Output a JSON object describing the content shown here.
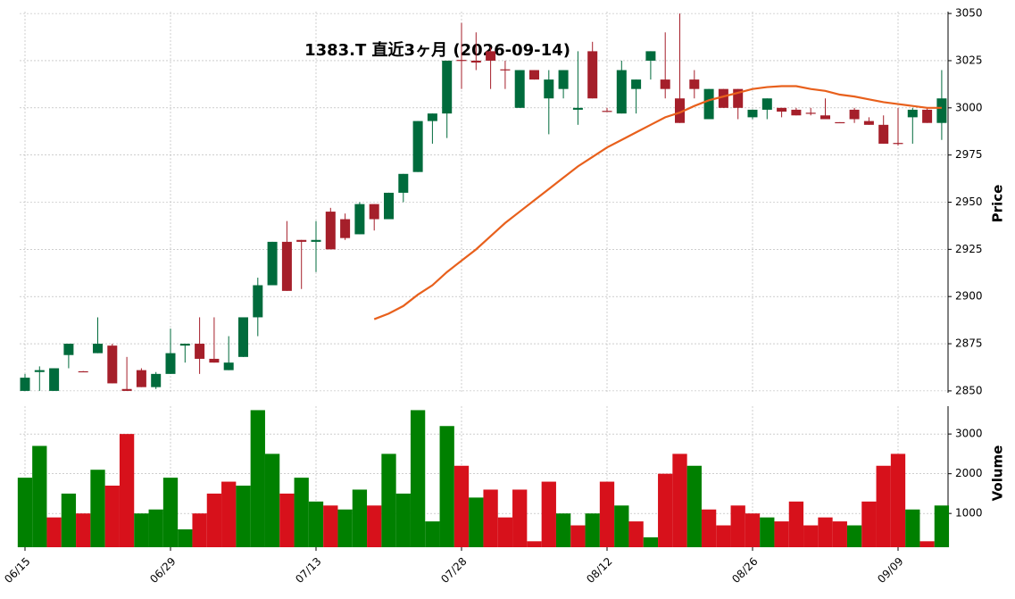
{
  "chart_data": {
    "type": "candlestick",
    "title": "1383.T  直近3ヶ月  (2026-09-14)",
    "categories": [
      "06/15",
      null,
      null,
      null,
      null,
      null,
      null,
      null,
      null,
      null,
      "06/29",
      null,
      null,
      null,
      null,
      null,
      null,
      null,
      null,
      null,
      "07/13",
      null,
      null,
      null,
      null,
      null,
      null,
      null,
      null,
      null,
      "07/28",
      null,
      null,
      null,
      null,
      null,
      null,
      null,
      null,
      null,
      "08/12",
      null,
      null,
      null,
      null,
      null,
      null,
      null,
      null,
      null,
      "08/26",
      null,
      null,
      null,
      null,
      null,
      null,
      null,
      null,
      null,
      "09/09",
      null,
      null,
      null
    ],
    "open": [
      2850,
      2860,
      2850,
      2869,
      2860.4,
      2870,
      2874,
      2851,
      2861,
      2852,
      2859,
      2874,
      2875,
      2867,
      2861,
      2868,
      2889,
      2906,
      2929,
      2930,
      2929,
      2945,
      2941,
      2933,
      2949,
      2941,
      2955,
      2966,
      2993,
      2997,
      3025.4,
      3025,
      3030,
      3020.4,
      3000,
      3020,
      3005,
      3010,
      2999,
      3030,
      2998.4,
      2997,
      3010,
      3025,
      3015,
      3005,
      3015,
      2994,
      3010,
      3010,
      2995,
      2999,
      3000,
      2999,
      2997.4,
      2996,
      2992.4,
      2999,
      2993,
      2991,
      2981.4,
      2995,
      2999,
      2992
    ],
    "high": [
      2859,
      2863,
      2862,
      2875,
      2860.5,
      2889,
      2875,
      2868,
      2862,
      2860,
      2883,
      2875,
      2889,
      2889,
      2879,
      2889,
      2910,
      2929,
      2940,
      2930,
      2940,
      2947,
      2944,
      2950,
      2949,
      2955,
      2965,
      2993,
      2997,
      3025,
      3045,
      3040,
      3032,
      3025,
      3020,
      3020,
      3020,
      3020,
      3030,
      3035,
      3000,
      3025,
      3015,
      3030,
      3040,
      3050,
      3020,
      3010,
      3010,
      3010,
      2999,
      3005,
      3000,
      3000,
      3000,
      3005,
      2992.4,
      3000,
      2995,
      2996,
      3000,
      3000,
      3000,
      3020
    ],
    "low": [
      2850,
      2850,
      2850,
      2862,
      2860,
      2870,
      2854,
      2850,
      2852,
      2851,
      2859,
      2865,
      2859,
      2865,
      2861,
      2868,
      2879,
      2906,
      2903,
      2904,
      2913,
      2925,
      2930,
      2933,
      2935,
      2941,
      2950,
      2966,
      2981,
      2984,
      3010,
      3020,
      3010,
      3010,
      3000,
      3015,
      2986,
      3005,
      2991,
      3005,
      2998,
      2997,
      2997,
      3015,
      3005,
      2992,
      3005,
      2994,
      3000,
      2994,
      2994,
      2994,
      2995,
      2996,
      2996,
      2994,
      2992,
      2992,
      2991,
      2981,
      2980,
      2981,
      2992,
      2983
    ],
    "close": [
      2857,
      2861,
      2862,
      2875,
      2860,
      2875,
      2854,
      2850,
      2852,
      2859,
      2870,
      2875,
      2867,
      2865,
      2865,
      2889,
      2906,
      2929,
      2903,
      2929,
      2930,
      2925,
      2931,
      2949,
      2941,
      2955,
      2965,
      2993,
      2997,
      3025,
      3025,
      3024,
      3025,
      3020,
      3020,
      3015,
      3015,
      3020,
      3000,
      3005,
      2998,
      3020,
      3015,
      3030,
      3010,
      2992,
      3010,
      3010,
      3000,
      3000,
      2999,
      3005,
      2998,
      2996,
      2997,
      2994,
      2992,
      2994,
      2991,
      2981,
      2981,
      2999,
      2992,
      3005
    ],
    "up_color": "#006b3c",
    "down_color": "#a51f2a",
    "ylabel": "Price",
    "ylim": [
      2849,
      3051
    ],
    "yticks": [
      2850,
      2875,
      2900,
      2925,
      2950,
      2975,
      3000,
      3025,
      3050
    ],
    "grid": true,
    "ma": {
      "color": "#e8601c",
      "values": [
        null,
        null,
        null,
        null,
        null,
        null,
        null,
        null,
        null,
        null,
        null,
        null,
        null,
        null,
        null,
        null,
        null,
        null,
        null,
        null,
        null,
        null,
        null,
        null,
        2888,
        2891,
        2895,
        2901,
        2906,
        2913,
        2919,
        2925,
        2932,
        2939,
        2945,
        2951,
        2957,
        2963,
        2969,
        2974,
        2979,
        2983,
        2987,
        2991,
        2995,
        2997.5,
        3001,
        3004,
        3006,
        3008,
        3010,
        3011,
        3011.5,
        3011.5,
        3010,
        3009,
        3007,
        3006,
        3004.5,
        3003,
        3002,
        3001,
        3000,
        3000
      ]
    },
    "volume": {
      "ylabel": "Volume",
      "ylim": [
        150,
        3700
      ],
      "yticks": [
        1000,
        2000,
        3000
      ],
      "values": [
        1900,
        2700,
        900,
        1500,
        1000,
        2100,
        1700,
        3000,
        1000,
        1100,
        1900,
        600,
        1000,
        1500,
        1800,
        1700,
        3600,
        2500,
        1500,
        1900,
        1300,
        1200,
        1100,
        1600,
        1200,
        2500,
        1500,
        3600,
        800,
        3200,
        2200,
        1400,
        1600,
        900,
        1600,
        300,
        1800,
        1000,
        700,
        1000,
        1800,
        1200,
        800,
        400,
        2000,
        2500,
        2200,
        1100,
        700,
        1200,
        1000,
        900,
        800,
        1300,
        700,
        900,
        800,
        700,
        1300,
        2200,
        2500,
        1100,
        300,
        1200
      ],
      "colors": [
        "#008000",
        "#008000",
        "#d7111b",
        "#008000",
        "#d7111b",
        "#008000",
        "#d7111b",
        "#d7111b",
        "#008000",
        "#008000",
        "#008000",
        "#008000",
        "#d7111b",
        "#d7111b",
        "#d7111b",
        "#008000",
        "#008000",
        "#008000",
        "#d7111b",
        "#008000",
        "#008000",
        "#d7111b",
        "#008000",
        "#008000",
        "#d7111b",
        "#008000",
        "#008000",
        "#008000",
        "#008000",
        "#008000",
        "#d7111b",
        "#008000",
        "#d7111b",
        "#d7111b",
        "#d7111b",
        "#d7111b",
        "#d7111b",
        "#008000",
        "#d7111b",
        "#008000",
        "#d7111b",
        "#008000",
        "#d7111b",
        "#008000",
        "#d7111b",
        "#d7111b",
        "#008000",
        "#d7111b",
        "#d7111b",
        "#d7111b",
        "#d7111b",
        "#008000",
        "#d7111b",
        "#d7111b",
        "#d7111b",
        "#d7111b",
        "#d7111b",
        "#008000",
        "#d7111b",
        "#d7111b",
        "#d7111b",
        "#008000",
        "#d7111b",
        "#008000"
      ]
    }
  }
}
